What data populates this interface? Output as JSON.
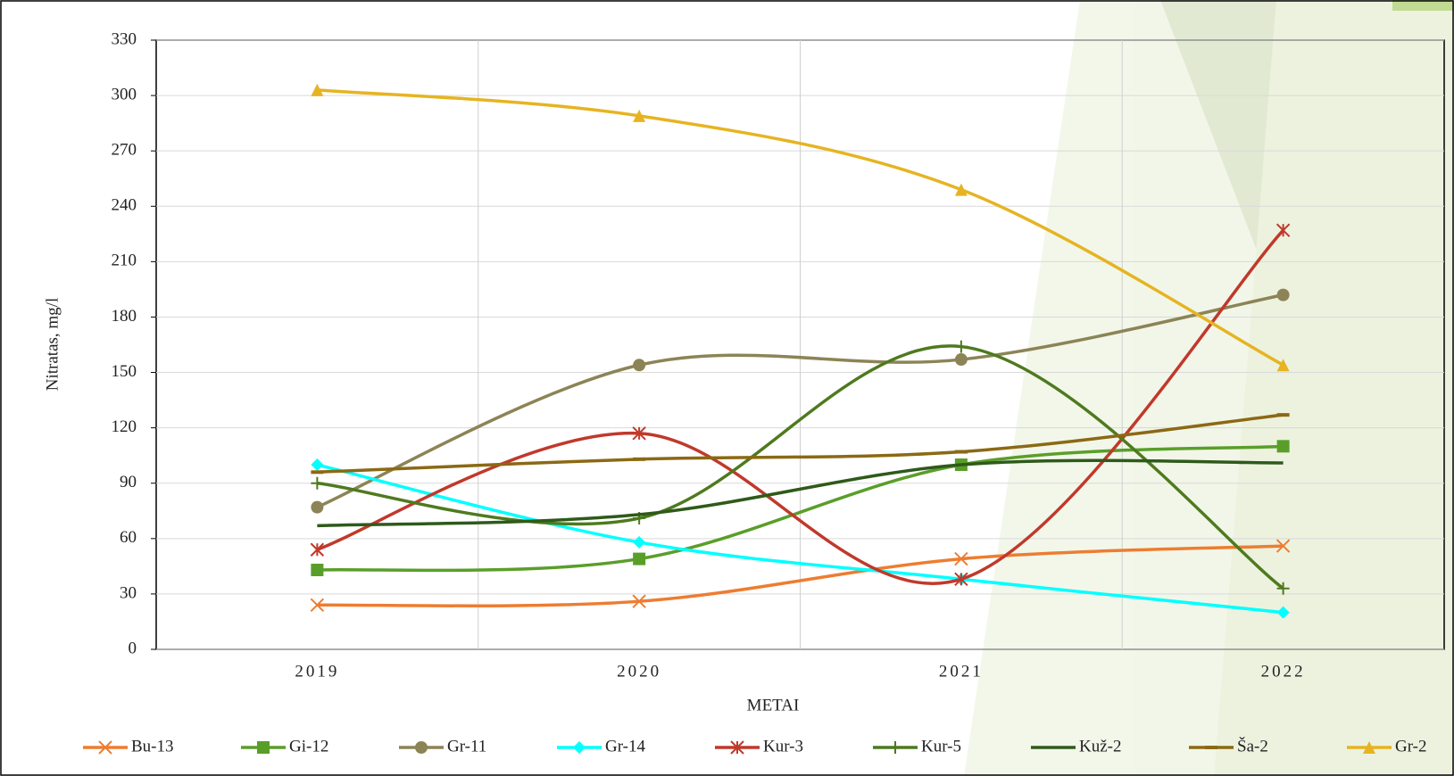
{
  "chart_data": {
    "type": "line",
    "x_label": "METAI",
    "y_label": "Nitratas, mg/l",
    "categories": [
      "2019",
      "2020",
      "2021",
      "2022"
    ],
    "ylim": [
      0,
      330
    ],
    "yticks": [
      0,
      30,
      60,
      90,
      120,
      150,
      180,
      210,
      240,
      270,
      300,
      330
    ],
    "grid": true,
    "smooth": true,
    "legend": "bottom",
    "series": [
      {
        "name": "Bu-13",
        "color": "#ed7d31",
        "marker": "x",
        "values": [
          24,
          26,
          49,
          56
        ]
      },
      {
        "name": "Gi-12",
        "color": "#5a9e2a",
        "marker": "square",
        "values": [
          43,
          49,
          100,
          110
        ]
      },
      {
        "name": "Gr-11",
        "color": "#8c8456",
        "marker": "circle",
        "values": [
          77,
          154,
          157,
          192
        ]
      },
      {
        "name": "Gr-14",
        "color": "#00ffff",
        "marker": "diamond",
        "values": [
          100,
          58,
          38,
          20
        ]
      },
      {
        "name": "Kur-3",
        "color": "#c0392b",
        "marker": "star",
        "values": [
          54,
          117,
          38,
          227
        ]
      },
      {
        "name": "Kur-5",
        "color": "#4e7a1e",
        "marker": "plus",
        "values": [
          90,
          71,
          164,
          33
        ]
      },
      {
        "name": "Kuž-2",
        "color": "#2e5a1a",
        "marker": "none",
        "values": [
          67,
          73,
          100,
          101
        ]
      },
      {
        "name": "Ša-2",
        "color": "#8b6914",
        "marker": "dash",
        "values": [
          96,
          103,
          107,
          127
        ]
      },
      {
        "name": "Gr-2",
        "color": "#e6b422",
        "marker": "triangle",
        "values": [
          303,
          289,
          249,
          154
        ]
      }
    ]
  }
}
